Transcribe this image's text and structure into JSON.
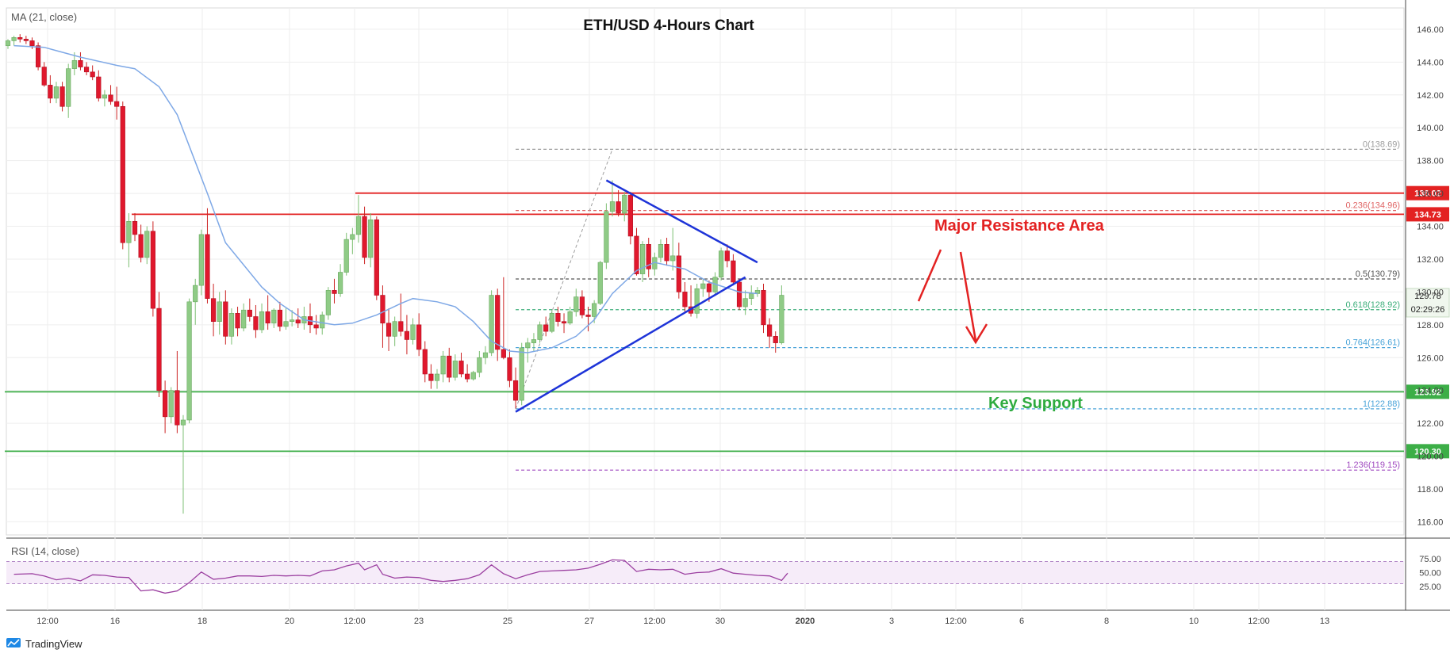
{
  "chart_data": {
    "type": "candlestick",
    "title": "ETH/USD 4-Hours Chart",
    "indicator_label": "MA (21, close)",
    "rsi_label": "RSI (14, close)",
    "brand": "TradingView",
    "x_tick_labels": [
      "12:00",
      "16",
      "18",
      "20",
      "12:00",
      "23",
      "25",
      "27",
      "12:00",
      "30",
      "2020",
      "3",
      "12:00",
      "6",
      "8",
      "10",
      "12:00",
      "13"
    ],
    "y_ticks": [
      116,
      118,
      120,
      122,
      124,
      126,
      128,
      130,
      132,
      134,
      136,
      138,
      140,
      142,
      144,
      146
    ],
    "ylim": [
      115.2,
      147.3
    ],
    "rsi_ticks": [
      "25.00",
      "50.00",
      "75.00"
    ],
    "candles": [
      [
        145.0,
        145.4,
        144.8,
        145.3
      ],
      [
        145.3,
        145.6,
        145.0,
        145.5
      ],
      [
        145.5,
        145.7,
        145.2,
        145.4
      ],
      [
        145.4,
        145.6,
        145.1,
        145.3
      ],
      [
        145.3,
        145.5,
        144.8,
        145.0
      ],
      [
        145.0,
        145.2,
        143.5,
        143.7
      ],
      [
        143.7,
        144.0,
        142.5,
        142.6
      ],
      [
        142.6,
        143.2,
        141.5,
        141.8
      ],
      [
        141.8,
        142.8,
        141.5,
        142.5
      ],
      [
        142.5,
        142.8,
        141.0,
        141.3
      ],
      [
        141.3,
        143.9,
        140.6,
        143.6
      ],
      [
        143.6,
        144.6,
        143.2,
        144.1
      ],
      [
        144.1,
        144.6,
        143.5,
        143.7
      ],
      [
        143.7,
        144.0,
        143.2,
        143.4
      ],
      [
        143.4,
        143.8,
        142.9,
        143.1
      ],
      [
        143.1,
        143.5,
        141.6,
        141.8
      ],
      [
        141.8,
        142.3,
        141.3,
        142.0
      ],
      [
        142.0,
        142.6,
        141.4,
        141.6
      ],
      [
        141.6,
        142.5,
        140.5,
        141.3
      ],
      [
        141.3,
        141.6,
        132.6,
        133.0
      ],
      [
        133.0,
        134.8,
        131.5,
        134.3
      ],
      [
        134.3,
        134.8,
        133.1,
        133.5
      ],
      [
        133.5,
        134.1,
        131.8,
        132.1
      ],
      [
        132.1,
        134.0,
        131.7,
        133.7
      ],
      [
        133.7,
        134.3,
        128.5,
        129.0
      ],
      [
        129.0,
        130.0,
        123.6,
        124.0
      ],
      [
        124.0,
        124.6,
        121.4,
        122.4
      ],
      [
        122.4,
        124.2,
        122.0,
        124.0
      ],
      [
        124.0,
        126.4,
        121.4,
        121.9
      ],
      [
        121.9,
        122.5,
        116.5,
        122.2
      ],
      [
        122.2,
        129.6,
        122.0,
        129.4
      ],
      [
        129.4,
        130.8,
        128.0,
        130.4
      ],
      [
        130.4,
        133.8,
        129.8,
        133.5
      ],
      [
        133.5,
        135.1,
        129.3,
        129.6
      ],
      [
        129.6,
        130.5,
        127.3,
        128.2
      ],
      [
        128.2,
        130.0,
        127.4,
        129.4
      ],
      [
        129.4,
        130.1,
        126.8,
        127.3
      ],
      [
        127.3,
        129.0,
        126.8,
        128.7
      ],
      [
        128.7,
        129.1,
        127.3,
        127.8
      ],
      [
        127.8,
        129.3,
        127.6,
        128.9
      ],
      [
        128.9,
        129.6,
        128.2,
        128.5
      ],
      [
        128.5,
        129.2,
        127.2,
        127.7
      ],
      [
        127.7,
        129.3,
        127.5,
        128.8
      ],
      [
        128.8,
        129.8,
        127.7,
        128.1
      ],
      [
        128.1,
        129.0,
        127.8,
        128.9
      ],
      [
        128.9,
        129.4,
        127.6,
        127.9
      ],
      [
        127.9,
        129.0,
        127.7,
        128.2
      ],
      [
        128.2,
        128.9,
        127.9,
        128.3
      ],
      [
        128.3,
        129.0,
        127.8,
        128.1
      ],
      [
        128.1,
        129.1,
        127.7,
        128.5
      ],
      [
        128.5,
        129.3,
        127.5,
        128.0
      ],
      [
        128.0,
        128.6,
        127.4,
        127.8
      ],
      [
        127.8,
        128.8,
        127.4,
        128.6
      ],
      [
        128.6,
        130.3,
        128.3,
        130.1
      ],
      [
        130.1,
        130.8,
        129.3,
        129.9
      ],
      [
        129.9,
        131.7,
        129.7,
        131.2
      ],
      [
        131.2,
        133.6,
        131.0,
        133.2
      ],
      [
        133.2,
        133.9,
        132.3,
        133.5
      ],
      [
        133.5,
        135.9,
        133.0,
        134.6
      ],
      [
        134.6,
        135.2,
        131.7,
        132.1
      ],
      [
        132.1,
        134.8,
        131.5,
        134.4
      ],
      [
        134.4,
        134.6,
        129.5,
        129.8
      ],
      [
        129.8,
        130.4,
        126.6,
        128.1
      ],
      [
        128.1,
        129.0,
        126.4,
        127.3
      ],
      [
        127.3,
        128.5,
        126.7,
        128.2
      ],
      [
        128.2,
        129.9,
        127.3,
        127.6
      ],
      [
        127.6,
        128.6,
        126.2,
        127.1
      ],
      [
        127.1,
        128.4,
        126.8,
        128.0
      ],
      [
        128.0,
        128.7,
        126.1,
        126.5
      ],
      [
        126.5,
        127.0,
        124.5,
        125.0
      ],
      [
        125.0,
        125.6,
        124.1,
        124.6
      ],
      [
        124.6,
        125.3,
        124.1,
        125.0
      ],
      [
        125.0,
        126.4,
        124.5,
        126.1
      ],
      [
        126.1,
        126.6,
        124.5,
        124.8
      ],
      [
        124.8,
        126.2,
        124.6,
        125.8
      ],
      [
        125.8,
        126.3,
        124.8,
        125.0
      ],
      [
        125.0,
        125.6,
        124.5,
        124.7
      ],
      [
        124.7,
        125.2,
        124.6,
        125.1
      ],
      [
        125.1,
        126.4,
        124.8,
        126.0
      ],
      [
        126.0,
        126.7,
        125.6,
        126.3
      ],
      [
        126.3,
        130.1,
        126.1,
        129.8
      ],
      [
        129.8,
        130.2,
        125.8,
        126.5
      ],
      [
        126.5,
        130.9,
        125.9,
        126.0
      ],
      [
        126.0,
        126.5,
        124.2,
        124.6
      ],
      [
        124.6,
        125.4,
        122.9,
        123.4
      ],
      [
        123.4,
        126.9,
        123.1,
        126.6
      ],
      [
        126.6,
        127.2,
        125.7,
        126.9
      ],
      [
        126.9,
        127.5,
        126.4,
        127.1
      ],
      [
        127.1,
        128.2,
        126.9,
        128.0
      ],
      [
        128.0,
        128.5,
        127.3,
        127.6
      ],
      [
        127.6,
        128.9,
        127.5,
        128.7
      ],
      [
        128.7,
        129.1,
        127.9,
        128.2
      ],
      [
        128.2,
        128.7,
        127.5,
        128.1
      ],
      [
        128.1,
        129.1,
        128.0,
        128.8
      ],
      [
        128.8,
        130.2,
        128.5,
        129.7
      ],
      [
        129.7,
        130.1,
        128.4,
        128.6
      ],
      [
        128.6,
        129.1,
        127.6,
        128.5
      ],
      [
        128.5,
        129.5,
        128.1,
        129.3
      ],
      [
        129.3,
        131.9,
        129.2,
        131.8
      ],
      [
        131.8,
        135.4,
        131.4,
        134.9
      ],
      [
        134.9,
        136.8,
        134.6,
        135.5
      ],
      [
        135.5,
        136.2,
        134.6,
        134.8
      ],
      [
        134.8,
        136.1,
        134.3,
        135.9
      ],
      [
        135.9,
        136.1,
        132.9,
        133.4
      ],
      [
        133.4,
        133.9,
        131.0,
        131.1
      ],
      [
        131.1,
        133.1,
        130.6,
        132.9
      ],
      [
        132.9,
        133.3,
        130.9,
        131.4
      ],
      [
        131.4,
        132.4,
        131.0,
        132.1
      ],
      [
        132.1,
        133.2,
        131.8,
        132.9
      ],
      [
        132.9,
        133.3,
        131.6,
        131.9
      ],
      [
        131.9,
        133.9,
        131.3,
        132.2
      ],
      [
        132.2,
        133.0,
        129.6,
        130.0
      ],
      [
        130.0,
        130.6,
        128.7,
        129.1
      ],
      [
        129.1,
        130.4,
        128.5,
        128.7
      ],
      [
        128.7,
        130.5,
        128.4,
        130.2
      ],
      [
        130.2,
        130.8,
        129.7,
        130.5
      ],
      [
        130.5,
        130.7,
        129.4,
        130.0
      ],
      [
        130.0,
        131.2,
        129.8,
        130.9
      ],
      [
        130.9,
        132.7,
        130.7,
        132.5
      ],
      [
        132.5,
        132.9,
        131.5,
        131.9
      ],
      [
        131.9,
        132.3,
        130.4,
        130.6
      ],
      [
        130.6,
        130.8,
        128.9,
        129.1
      ],
      [
        129.1,
        130.1,
        128.6,
        129.6
      ],
      [
        129.6,
        130.4,
        129.2,
        129.9
      ],
      [
        129.9,
        130.3,
        129.7,
        130.1
      ],
      [
        130.1,
        130.5,
        127.5,
        128.0
      ],
      [
        128.0,
        128.4,
        126.6,
        127.3
      ],
      [
        127.3,
        127.6,
        126.3,
        126.9
      ],
      [
        126.9,
        130.4,
        126.8,
        129.8
      ]
    ],
    "ma": [
      [
        145.0,
        1
      ],
      [
        144.9,
        6
      ],
      [
        144.7,
        8
      ],
      [
        144.3,
        12
      ],
      [
        143.8,
        18
      ],
      [
        143.6,
        21
      ],
      [
        142.5,
        25
      ],
      [
        140.8,
        28
      ],
      [
        136.0,
        33
      ],
      [
        133.0,
        36
      ],
      [
        130.3,
        42
      ],
      [
        129.3,
        45
      ],
      [
        128.3,
        49
      ],
      [
        128.0,
        54
      ],
      [
        128.1,
        57
      ],
      [
        128.6,
        61
      ],
      [
        129.3,
        65
      ],
      [
        129.6,
        67
      ],
      [
        129.4,
        71
      ],
      [
        129.1,
        74
      ],
      [
        128.2,
        77
      ],
      [
        127.0,
        80
      ],
      [
        126.4,
        83
      ],
      [
        126.3,
        86
      ],
      [
        126.6,
        90
      ],
      [
        127.3,
        94
      ],
      [
        128.3,
        97
      ],
      [
        129.9,
        100
      ],
      [
        131.3,
        104
      ],
      [
        131.8,
        107
      ],
      [
        131.4,
        112
      ],
      [
        130.6,
        116
      ],
      [
        130.0,
        121
      ],
      [
        129.9,
        124
      ]
    ],
    "horizontal_levels": [
      {
        "value": 136.02,
        "label": "136.02",
        "color": "#e32222",
        "start_bar": 58
      },
      {
        "value": 134.73,
        "label": "134.73",
        "color": "#e32222",
        "start_bar": 21
      },
      {
        "value": 123.92,
        "label": "123.92",
        "color": "#3cae47",
        "start_bar": 0
      },
      {
        "value": 120.3,
        "label": "120.30",
        "color": "#3cae47",
        "start_bar": 0
      }
    ],
    "fib_levels": [
      {
        "ratio": "0",
        "value": 138.69,
        "label": "0(138.69)",
        "color": "#9e9e9e"
      },
      {
        "ratio": "0.236",
        "value": 134.96,
        "label": "0.236(134.96)",
        "color": "#e06666"
      },
      {
        "ratio": "0.5",
        "value": 130.79,
        "label": "0.5(130.79)",
        "color": "#555555"
      },
      {
        "ratio": "0.618",
        "value": 128.92,
        "label": "0.618(128.92)",
        "color": "#3cae7a"
      },
      {
        "ratio": "0.764",
        "value": 126.61,
        "label": "0.764(126.61)",
        "color": "#4aa4d9"
      },
      {
        "ratio": "1",
        "value": 122.88,
        "label": "1(122.88)",
        "color": "#4aa4d9"
      },
      {
        "ratio": "1.236",
        "value": 119.15,
        "label": "1.236(119.15)",
        "color": "#a04ac0"
      }
    ],
    "current_price": {
      "value": 129.78,
      "label": "129.78",
      "countdown": "02:29:26"
    },
    "trendlines": [
      {
        "name": "upper",
        "color": "#1e34d8",
        "from": [
          99,
          136.8
        ],
        "to": [
          124,
          131.8
        ]
      },
      {
        "name": "lower",
        "color": "#1e34d8",
        "from": [
          84,
          122.7
        ],
        "to": [
          122,
          130.9
        ]
      }
    ],
    "annotations": {
      "resistance": "Major Resistance Area",
      "support": "Key Support"
    },
    "rsi": [
      [
        1,
        47
      ],
      [
        4,
        48
      ],
      [
        6,
        44
      ],
      [
        8,
        37
      ],
      [
        10,
        40
      ],
      [
        12,
        35
      ],
      [
        14,
        46
      ],
      [
        16,
        45
      ],
      [
        18,
        42
      ],
      [
        20,
        41
      ],
      [
        22,
        17
      ],
      [
        24,
        19
      ],
      [
        26,
        13
      ],
      [
        28,
        17
      ],
      [
        30,
        32
      ],
      [
        32,
        51
      ],
      [
        34,
        38
      ],
      [
        36,
        40
      ],
      [
        38,
        44
      ],
      [
        40,
        44
      ],
      [
        42,
        43
      ],
      [
        44,
        45
      ],
      [
        46,
        44
      ],
      [
        48,
        45
      ],
      [
        50,
        44
      ],
      [
        52,
        53
      ],
      [
        54,
        55
      ],
      [
        56,
        62
      ],
      [
        58,
        67
      ],
      [
        59,
        55
      ],
      [
        61,
        64
      ],
      [
        62,
        47
      ],
      [
        64,
        40
      ],
      [
        66,
        42
      ],
      [
        68,
        41
      ],
      [
        70,
        36
      ],
      [
        72,
        34
      ],
      [
        74,
        36
      ],
      [
        76,
        39
      ],
      [
        78,
        46
      ],
      [
        80,
        64
      ],
      [
        82,
        48
      ],
      [
        84,
        39
      ],
      [
        86,
        46
      ],
      [
        88,
        52
      ],
      [
        90,
        53
      ],
      [
        92,
        54
      ],
      [
        94,
        55
      ],
      [
        96,
        58
      ],
      [
        98,
        65
      ],
      [
        100,
        73
      ],
      [
        102,
        72
      ],
      [
        104,
        52
      ],
      [
        106,
        56
      ],
      [
        108,
        55
      ],
      [
        110,
        56
      ],
      [
        112,
        47
      ],
      [
        114,
        50
      ],
      [
        116,
        51
      ],
      [
        118,
        57
      ],
      [
        120,
        49
      ],
      [
        122,
        47
      ],
      [
        124,
        45
      ],
      [
        126,
        44
      ],
      [
        128,
        36
      ],
      [
        129,
        49
      ]
    ]
  }
}
